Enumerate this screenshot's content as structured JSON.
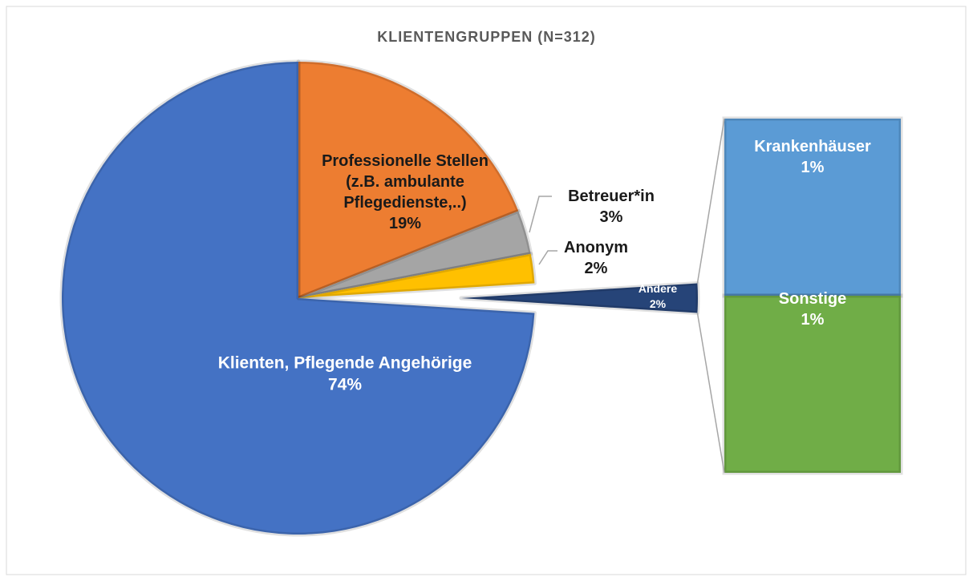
{
  "chart_data": {
    "type": "pie",
    "title": "KLIENTENGRUPPEN (N=312)",
    "categories": [
      "Professionelle Stellen (z.B. ambulante Pflegedienste,..)",
      "Betreuer*in",
      "Anonym",
      "Andere",
      "Klienten, Pflegende Angehörige"
    ],
    "values": [
      19,
      3,
      2,
      2,
      74
    ],
    "value_labels": [
      "19%",
      "3%",
      "2%",
      "2%",
      "74%"
    ],
    "colors": [
      "#ed7d31",
      "#a5a5a5",
      "#ffc000",
      "#264478",
      "#4472c4"
    ],
    "bar_of_pie": {
      "categories": [
        "Krankenhäuser",
        "Sonstige"
      ],
      "values": [
        1,
        1
      ],
      "value_labels": [
        "1%",
        "1%"
      ],
      "colors": [
        "#5b9bd5",
        "#70ad47"
      ]
    }
  }
}
